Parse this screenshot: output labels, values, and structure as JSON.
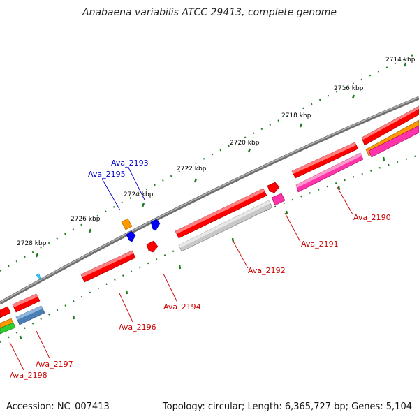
{
  "title": "Anabaena variabilis ATCC 29413, complete genome",
  "footer": {
    "accession": "Accession: NC_007413",
    "topology": "Topology: circular; Length: 6,365,727 bp; Genes: 5,104"
  },
  "tick_labels": [
    "2714 kbp",
    "2716 kbp",
    "2718 kbp",
    "2720 kbp",
    "2722 kbp",
    "2724 kbp",
    "2726 kbp",
    "2728 kbp"
  ],
  "genes": {
    "ava_2190": "Ava_2190",
    "ava_2191": "Ava_2191",
    "ava_2192": "Ava_2192",
    "ava_2193": "Ava_2193",
    "ava_2194": "Ava_2194",
    "ava_2195": "Ava_2195",
    "ava_2196": "Ava_2196",
    "ava_2197": "Ava_2197",
    "ava_2198": "Ava_2198"
  },
  "colors": {
    "backbone": "#8a8a8a",
    "tick": "#1f7a1f",
    "gene_red": "#ff0000",
    "gene_pink": "#ff33aa",
    "gene_orange": "#ff9900",
    "gene_gray": "#c8c8c8",
    "gene_steelblue": "#4a7fb5",
    "gene_blue": "#0000ff",
    "gene_cyan": "#33ccff",
    "gene_green": "#33cc33",
    "label_red": "#cc0000",
    "label_blue": "#0000cc"
  }
}
